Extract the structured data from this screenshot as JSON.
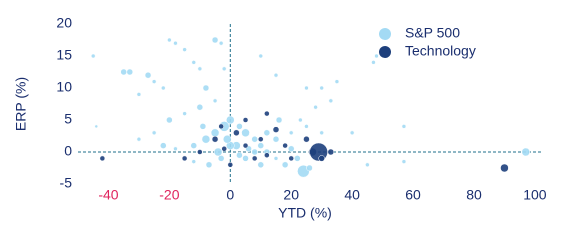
{
  "chart_data": {
    "type": "scatter",
    "x_label": "YTD (%)",
    "y_label": "ERP (%)",
    "xlim": [
      -50,
      102
    ],
    "ylim": [
      -5,
      20
    ],
    "xticks": [
      -40,
      -20,
      0,
      20,
      40,
      60,
      80,
      100
    ],
    "yticks": [
      -5,
      0,
      5,
      10,
      15,
      20
    ],
    "negative_tick_color": "#e0245e",
    "legend": "top-right",
    "series": [
      {
        "name": "S&P 500",
        "color": "#a3daf4",
        "x": [
          -45,
          -35,
          -33,
          -30,
          -27,
          -25,
          -22,
          -20,
          -18,
          -15,
          -12,
          -10,
          -8,
          -5,
          -3,
          -2,
          -5,
          -10,
          -15,
          -20,
          -25,
          -30,
          -22,
          -18,
          -12,
          -8,
          -5,
          -2,
          0,
          3,
          5,
          8,
          10,
          12,
          15,
          18,
          20,
          22,
          -3,
          -7,
          -12,
          5,
          10,
          2,
          -4,
          8,
          15,
          20,
          25,
          30,
          33,
          35,
          30,
          25,
          28,
          23,
          40,
          45,
          47,
          48,
          57,
          57,
          97,
          10,
          15,
          -44,
          24,
          26,
          0,
          -1,
          3,
          6,
          12,
          16,
          -9
        ],
        "y": [
          15,
          12.5,
          12.5,
          9,
          12,
          11,
          10,
          17.5,
          17,
          16,
          14,
          13,
          10,
          17.5,
          17,
          13,
          8,
          7,
          6,
          5,
          3,
          2,
          1,
          0.5,
          1,
          2,
          3,
          4,
          5,
          4,
          3,
          2,
          1,
          0,
          -1,
          -2,
          0.5,
          -1,
          -1,
          -2,
          -1.5,
          -1,
          -2,
          1,
          0,
          0,
          2,
          3,
          4,
          3,
          8,
          11,
          10,
          10,
          7,
          5,
          3,
          -2,
          14,
          15,
          4,
          -1.5,
          0,
          15,
          12,
          4,
          -3,
          -2.5,
          1,
          2,
          -0.5,
          0.5,
          3,
          5,
          4
        ],
        "sizes": [
          2,
          3,
          3,
          2,
          3,
          2,
          2,
          2,
          2,
          2,
          2,
          2,
          3,
          3,
          2,
          2,
          2,
          3,
          2,
          3,
          2,
          2,
          3,
          2,
          3,
          4,
          4,
          5,
          4,
          3,
          4,
          3,
          3,
          3,
          2,
          3,
          3,
          3,
          3,
          3,
          2,
          3,
          3,
          4,
          4,
          3,
          3,
          2,
          2,
          2,
          2,
          2,
          2,
          2,
          2,
          2,
          2,
          2,
          2,
          2,
          2,
          2,
          4,
          2,
          2,
          1.5,
          6,
          3,
          4,
          4,
          3,
          3,
          3,
          3,
          3
        ]
      },
      {
        "name": "Technology",
        "color": "#1d3f7c",
        "x": [
          -42,
          -15,
          -10,
          -5,
          -2,
          0,
          2,
          5,
          8,
          10,
          12,
          15,
          18,
          20,
          25,
          27,
          29,
          30,
          33,
          5,
          90,
          12,
          -3
        ],
        "y": [
          -1,
          -1,
          0,
          2,
          0.5,
          -2,
          3,
          1,
          -1,
          2,
          -0.5,
          3.5,
          1,
          -1,
          2,
          0,
          0,
          -1,
          0,
          5,
          -2.5,
          6,
          4
        ],
        "sizes": [
          2.5,
          2.5,
          2.5,
          3,
          2.5,
          2.5,
          3,
          2.5,
          2.5,
          2.5,
          2.5,
          3,
          2.5,
          2.5,
          3,
          4,
          9,
          3,
          3,
          2.5,
          4,
          2.5,
          2.5
        ]
      }
    ]
  }
}
